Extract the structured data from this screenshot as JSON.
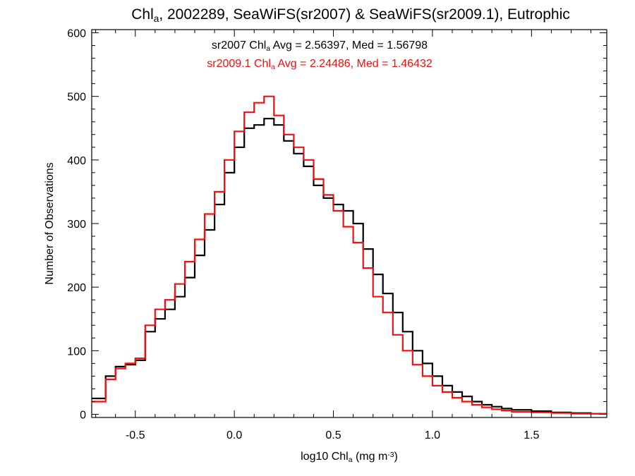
{
  "chart_data": {
    "type": "line",
    "step": true,
    "title": {
      "pre": "Chl",
      "sub": "a",
      "post": ", 2002289, SeaWiFS(sr2007) & SeaWiFS(sr2009.1), Eutrophic"
    },
    "xlabel": {
      "pre": "log10 Chl",
      "sub": "a",
      "mid": " (mg m",
      "sup": "-3",
      "post": ")"
    },
    "ylabel": "Number of Observations",
    "xlim": [
      -0.72,
      1.88
    ],
    "ylim": [
      -5,
      605
    ],
    "x_ticks": [
      -0.5,
      0.0,
      0.5,
      1.0,
      1.5
    ],
    "x_tick_labels": [
      "-0.5",
      "0.0",
      "0.5",
      "1.0",
      "1.5"
    ],
    "y_ticks": [
      0,
      100,
      200,
      300,
      400,
      500,
      600
    ],
    "y_tick_labels": [
      "0",
      "100",
      "200",
      "300",
      "400",
      "500",
      "600"
    ],
    "grid": false,
    "annotations": [
      {
        "pre": "sr2007 Chl",
        "sub": "a",
        "post": " Avg = 2.56397, Med = 1.56798",
        "color": "#000000"
      },
      {
        "pre": "sr2009.1 Chl",
        "sub": "a",
        "post": " Avg = 2.24486, Med = 1.46432",
        "color": "#ee1111"
      }
    ],
    "series": [
      {
        "color": "#000000",
        "x": [
          -0.72,
          -0.65,
          -0.6,
          -0.55,
          -0.5,
          -0.45,
          -0.4,
          -0.35,
          -0.3,
          -0.25,
          -0.2,
          -0.15,
          -0.1,
          -0.05,
          0.0,
          0.05,
          0.1,
          0.15,
          0.2,
          0.25,
          0.3,
          0.35,
          0.4,
          0.45,
          0.5,
          0.55,
          0.6,
          0.65,
          0.7,
          0.75,
          0.8,
          0.85,
          0.9,
          0.95,
          1.0,
          1.05,
          1.1,
          1.15,
          1.2,
          1.25,
          1.3,
          1.35,
          1.4,
          1.5,
          1.6,
          1.7,
          1.8,
          1.88
        ],
        "y": [
          25,
          60,
          75,
          78,
          85,
          130,
          150,
          165,
          185,
          215,
          250,
          290,
          330,
          380,
          420,
          450,
          455,
          465,
          455,
          430,
          410,
          390,
          360,
          340,
          330,
          320,
          300,
          260,
          220,
          190,
          160,
          130,
          100,
          80,
          60,
          45,
          35,
          28,
          20,
          15,
          12,
          9,
          7,
          5,
          3,
          2,
          1,
          1
        ]
      },
      {
        "color": "#ee1111",
        "x": [
          -0.72,
          -0.65,
          -0.6,
          -0.55,
          -0.5,
          -0.45,
          -0.4,
          -0.35,
          -0.3,
          -0.25,
          -0.2,
          -0.15,
          -0.1,
          -0.05,
          0.0,
          0.05,
          0.1,
          0.15,
          0.2,
          0.25,
          0.3,
          0.35,
          0.4,
          0.45,
          0.5,
          0.55,
          0.6,
          0.65,
          0.7,
          0.75,
          0.8,
          0.85,
          0.9,
          0.95,
          1.0,
          1.05,
          1.1,
          1.15,
          1.2,
          1.25,
          1.3,
          1.35,
          1.4,
          1.5,
          1.6,
          1.7,
          1.8,
          1.88
        ],
        "y": [
          20,
          55,
          72,
          80,
          88,
          140,
          165,
          180,
          205,
          240,
          275,
          315,
          350,
          400,
          445,
          475,
          490,
          500,
          470,
          440,
          420,
          400,
          370,
          345,
          320,
          295,
          270,
          230,
          185,
          160,
          125,
          100,
          78,
          60,
          45,
          35,
          26,
          20,
          15,
          11,
          8,
          6,
          4,
          3,
          2,
          1,
          1,
          1
        ]
      }
    ]
  }
}
